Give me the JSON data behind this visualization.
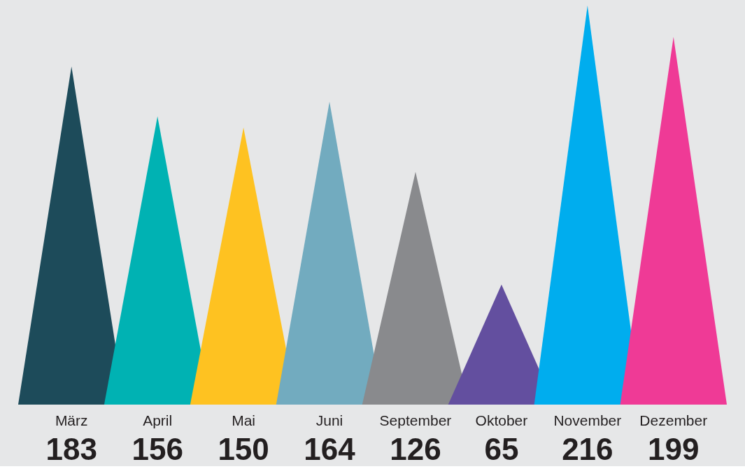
{
  "chart_data": {
    "type": "other",
    "data_labels": true,
    "categories": [
      "März",
      "April",
      "Mai",
      "Juni",
      "September",
      "Oktober",
      "November",
      "Dezember"
    ],
    "values": [
      183,
      156,
      150,
      164,
      126,
      65,
      216,
      199
    ],
    "colors": [
      "#1d4b5a",
      "#00b2b3",
      "#fec221",
      "#72abbf",
      "#898a8d",
      "#634f9f",
      "#00adee",
      "#ef3a96"
    ]
  }
}
